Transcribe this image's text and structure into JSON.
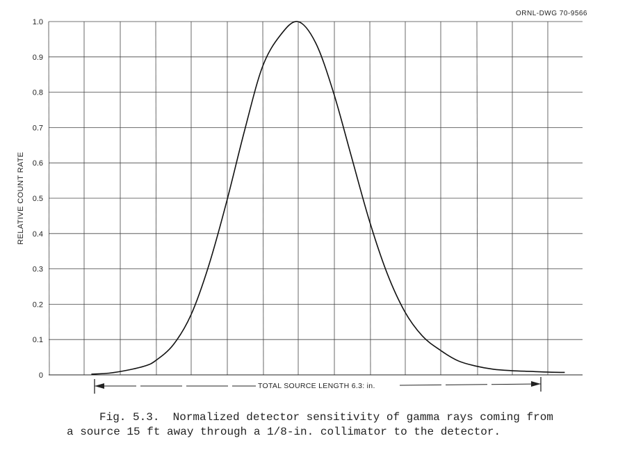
{
  "drawing_id": "ORNL-DWG 70-9566",
  "caption": {
    "line1": "Fig. 5.3.  Normalized detector sensitivity of gamma rays coming from",
    "line2": "a source 15 ft away through a 1/8-in. collimator to the detector."
  },
  "colors": {
    "line": "#111111",
    "grid": "#444444",
    "text": "#222222"
  },
  "chart_data": {
    "type": "line",
    "title": "",
    "xlabel": "",
    "ylabel": "RELATIVE COUNT RATE",
    "ylim": [
      0,
      1.0
    ],
    "xlim": [
      0,
      15
    ],
    "yticks": [
      0,
      0.1,
      0.2,
      0.3,
      0.4,
      0.5,
      0.6,
      0.7,
      0.8,
      0.9,
      1.0
    ],
    "ytick_labels": [
      "0",
      "0.1",
      "0.2",
      "0.3",
      "0.4",
      "0.5",
      "0.6",
      "0.7",
      "0.8",
      "0.9",
      "1.0"
    ],
    "grid": true,
    "annotation": "TOTAL SOURCE LENGTH 6.3: in.",
    "series": [
      {
        "x": [
          1.2,
          1.7,
          2.2,
          2.7,
          3.0,
          3.5,
          4.0,
          4.5,
          5.0,
          5.5,
          6.0,
          6.5,
          7.0,
          7.5,
          8.0,
          8.5,
          9.0,
          9.5,
          10.0,
          10.5,
          11.0,
          11.5,
          12.0,
          12.5,
          13.0,
          13.5,
          14.0,
          14.5
        ],
        "y": [
          0.002,
          0.005,
          0.013,
          0.025,
          0.04,
          0.085,
          0.17,
          0.31,
          0.49,
          0.69,
          0.87,
          0.96,
          1.0,
          0.94,
          0.8,
          0.62,
          0.44,
          0.29,
          0.18,
          0.11,
          0.07,
          0.04,
          0.025,
          0.016,
          0.012,
          0.01,
          0.008,
          0.007
        ]
      }
    ]
  }
}
